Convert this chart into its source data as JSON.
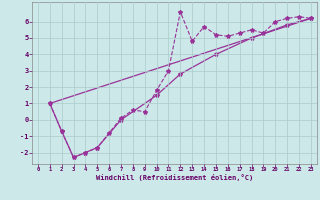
{
  "xlabel": "Windchill (Refroidissement éolien,°C)",
  "background_color": "#cce8e8",
  "line_color": "#993399",
  "xlim": [
    -0.5,
    23.5
  ],
  "ylim": [
    -2.7,
    7.2
  ],
  "xticks": [
    0,
    1,
    2,
    3,
    4,
    5,
    6,
    7,
    8,
    9,
    10,
    11,
    12,
    13,
    14,
    15,
    16,
    17,
    18,
    19,
    20,
    21,
    22,
    23
  ],
  "yticks": [
    -2,
    -1,
    0,
    1,
    2,
    3,
    4,
    5,
    6
  ],
  "grid_color": "#aacccc",
  "data_points": [
    [
      1,
      1.0
    ],
    [
      2,
      -0.7
    ],
    [
      3,
      -2.3
    ],
    [
      4,
      -2.0
    ],
    [
      5,
      -1.7
    ],
    [
      6,
      -0.8
    ],
    [
      7,
      0.1
    ],
    [
      8,
      0.6
    ],
    [
      9,
      0.5
    ],
    [
      10,
      1.8
    ],
    [
      11,
      3.0
    ],
    [
      12,
      6.6
    ],
    [
      13,
      4.8
    ],
    [
      14,
      5.7
    ],
    [
      15,
      5.2
    ],
    [
      16,
      5.1
    ],
    [
      17,
      5.3
    ],
    [
      18,
      5.5
    ],
    [
      19,
      5.3
    ],
    [
      20,
      6.0
    ],
    [
      21,
      6.2
    ],
    [
      22,
      6.3
    ],
    [
      23,
      6.2
    ]
  ],
  "trend_line": [
    [
      1,
      1.0
    ],
    [
      23,
      6.2
    ]
  ],
  "lower_line": [
    [
      1,
      1.0
    ],
    [
      2,
      -0.7
    ],
    [
      3,
      -2.3
    ],
    [
      4,
      -2.0
    ],
    [
      5,
      -1.7
    ],
    [
      7,
      0.0
    ],
    [
      10,
      1.5
    ],
    [
      12,
      2.8
    ],
    [
      15,
      4.0
    ],
    [
      18,
      5.0
    ],
    [
      21,
      5.8
    ],
    [
      23,
      6.2
    ]
  ]
}
